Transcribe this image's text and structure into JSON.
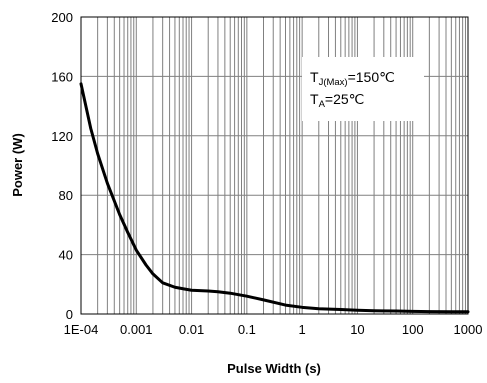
{
  "chart_data": {
    "type": "line",
    "title": "",
    "xlabel": "Pulse Width (s)",
    "ylabel": "Power (W)",
    "x_scale": "log",
    "xlim": [
      0.0001,
      1000
    ],
    "ylim": [
      0,
      200
    ],
    "x_ticks": [
      "1E-04",
      "0.001",
      "0.01",
      "0.1",
      "1",
      "10",
      "100",
      "1000"
    ],
    "y_ticks": [
      "0",
      "40",
      "80",
      "120",
      "160",
      "200"
    ],
    "grid": true,
    "series": [
      {
        "color": "#000000",
        "x": [
          0.0001,
          0.00015,
          0.0002,
          0.0003,
          0.0005,
          0.0007,
          0.001,
          0.0015,
          0.002,
          0.003,
          0.005,
          0.007,
          0.01,
          0.02,
          0.03,
          0.05,
          0.1,
          0.2,
          0.5,
          1,
          2,
          5,
          10,
          20,
          50,
          100,
          200,
          500,
          1000
        ],
        "y": [
          155,
          125,
          108,
          88,
          67,
          55,
          43,
          33,
          27,
          21,
          18,
          17,
          16,
          15.5,
          15,
          14,
          12,
          9.5,
          6,
          4.5,
          3.5,
          3,
          2.5,
          2.2,
          2,
          1.8,
          1.6,
          1.5,
          1.5
        ]
      }
    ],
    "annotations": [
      {
        "base": "T",
        "sub": "J(Max)",
        "rest": "=150℃"
      },
      {
        "base": "T",
        "sub": "A",
        "rest": "=25℃"
      }
    ]
  }
}
